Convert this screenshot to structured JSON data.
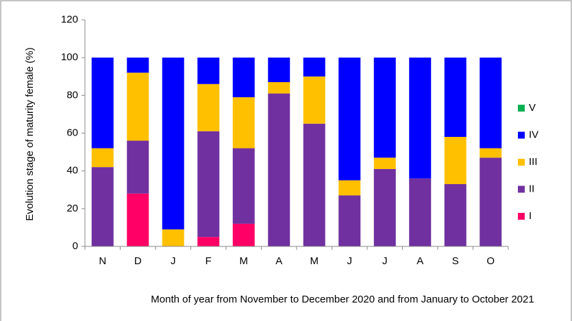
{
  "chart_data": {
    "type": "stacked_bar",
    "y_label": "Evolution stage of maturity female (%)",
    "x_label": "Month of year from November to December 2020 and from January to October 2021",
    "categories": [
      "N",
      "D",
      "J",
      "F",
      "M",
      "A",
      "M",
      "J",
      "J",
      "A",
      "S",
      "O"
    ],
    "series": [
      {
        "name": "I",
        "color": "#ff0066",
        "values": [
          0,
          28,
          0,
          5,
          12,
          0,
          0,
          0,
          0,
          0,
          0,
          0
        ]
      },
      {
        "name": "II",
        "color": "#7030a0",
        "values": [
          42,
          28,
          0,
          56,
          40,
          81,
          65,
          27,
          41,
          36,
          33,
          47
        ]
      },
      {
        "name": "III",
        "color": "#ffc000",
        "values": [
          10,
          36,
          9,
          25,
          27,
          6,
          25,
          8,
          6,
          0,
          25,
          5
        ]
      },
      {
        "name": "IV",
        "color": "#0000ff",
        "values": [
          48,
          8,
          91,
          14,
          21,
          13,
          10,
          65,
          53,
          64,
          42,
          48
        ]
      },
      {
        "name": "V",
        "color": "#00b050",
        "values": [
          0,
          0,
          0,
          0,
          0,
          0,
          0,
          0,
          0,
          0,
          0,
          0
        ]
      }
    ],
    "ylim": [
      0,
      120
    ],
    "yticks": [
      0,
      20,
      40,
      60,
      80,
      100,
      120
    ],
    "grid": false,
    "legend": "right"
  }
}
